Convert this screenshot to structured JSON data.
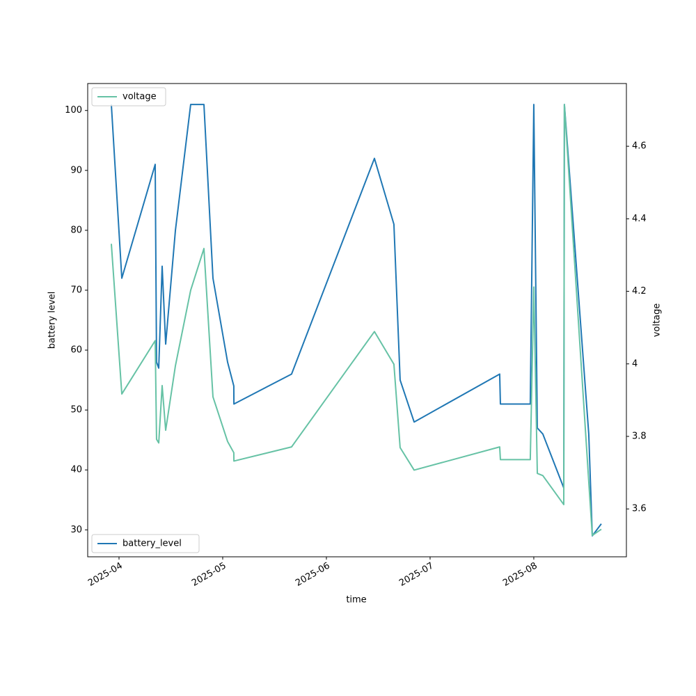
{
  "chart_data": {
    "type": "line",
    "xlabel": "time",
    "ylabel": "battery level",
    "y2label": "voltage",
    "x": [
      3.926,
      4.027,
      4.349,
      4.362,
      4.383,
      4.416,
      4.45,
      4.544,
      4.691,
      4.819,
      4.906,
      5.047,
      5.107,
      5.108,
      5.664,
      6.463,
      6.651,
      6.711,
      6.846,
      7.671,
      7.678,
      7.966,
      8.0,
      8.034,
      8.087,
      8.289,
      8.295,
      8.53,
      8.564,
      8.651
    ],
    "xlim": [
      3.698,
      8.893
    ],
    "xticks": [
      {
        "value": 4,
        "label": "2025-04"
      },
      {
        "value": 5,
        "label": "2025-05"
      },
      {
        "value": 6,
        "label": "2025-06"
      },
      {
        "value": 7,
        "label": "2025-07"
      },
      {
        "value": 8,
        "label": "2025-08"
      }
    ],
    "ylim": [
      25.5,
      104.5
    ],
    "yticks": [
      30,
      40,
      50,
      60,
      70,
      80,
      90,
      100
    ],
    "y2lim": [
      3.468,
      4.773
    ],
    "y2ticks": [
      3.6,
      3.8,
      4.0,
      4.2,
      4.4,
      4.6
    ],
    "series": [
      {
        "name": "battery_level",
        "color": "#1f77b4",
        "legend_loc": "lower left",
        "values": [
          101,
          72,
          91,
          58,
          57,
          74,
          61,
          80,
          101,
          101,
          72,
          58,
          54,
          51,
          56,
          92,
          81,
          55,
          48,
          56,
          51,
          51,
          101,
          47,
          46,
          37,
          101,
          46,
          29,
          31
        ]
      },
      {
        "name": "voltage",
        "color": "#66c2a5",
        "axis": "y2",
        "legend_loc": "upper left",
        "values": [
          4.331,
          3.917,
          4.064,
          3.792,
          3.782,
          3.94,
          3.817,
          3.995,
          4.203,
          4.318,
          3.909,
          3.786,
          3.755,
          3.732,
          3.771,
          4.089,
          3.999,
          3.769,
          3.707,
          3.771,
          3.736,
          3.736,
          4.212,
          3.698,
          3.692,
          3.612,
          4.715,
          3.675,
          3.527,
          3.544
        ]
      }
    ]
  }
}
